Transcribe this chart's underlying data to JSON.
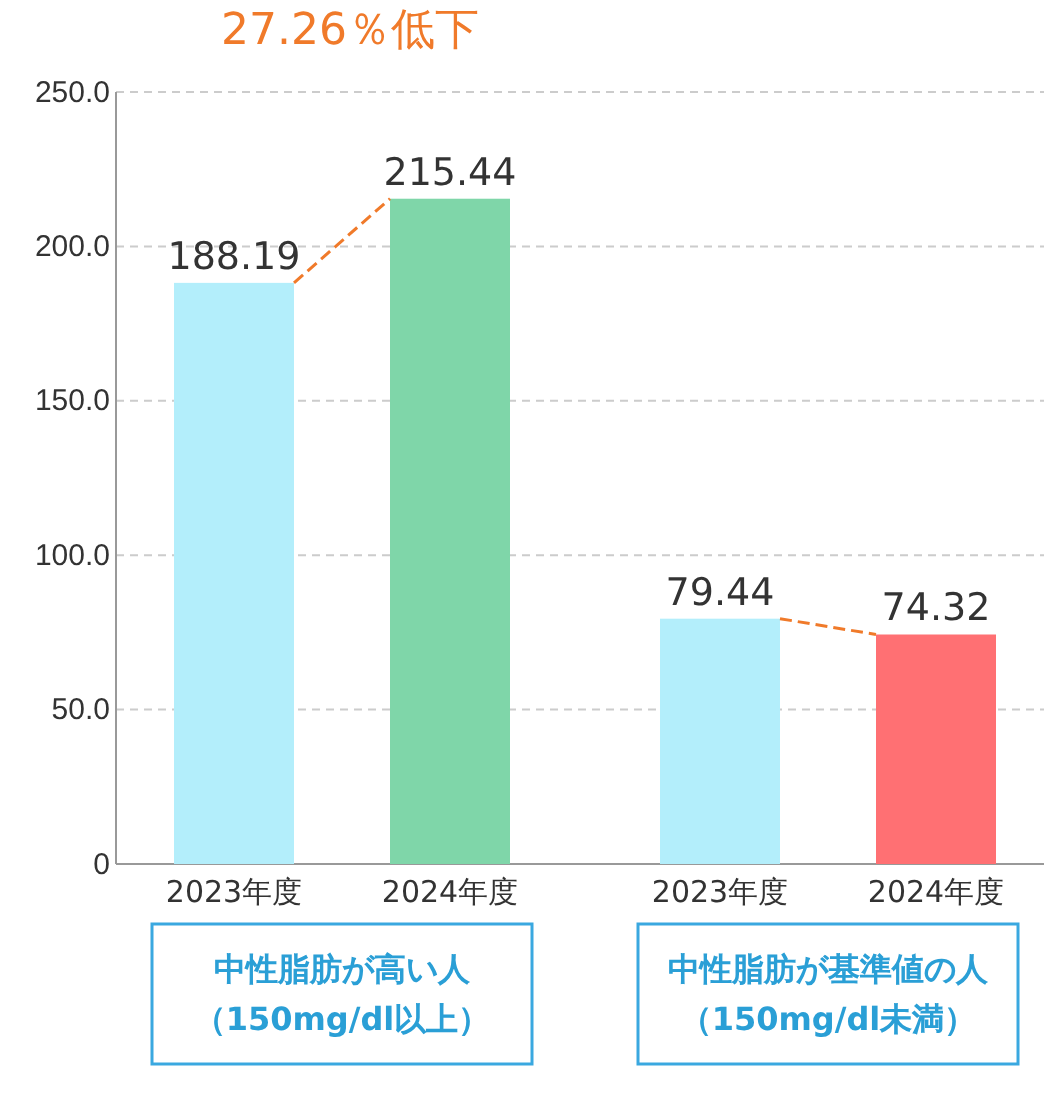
{
  "chart_data": {
    "type": "bar",
    "title": "27.26％低下",
    "categories": [
      "2023年度",
      "2024年度",
      "2023年度",
      "2024年度"
    ],
    "values": [
      188.19,
      215.44,
      79.44,
      74.32
    ],
    "colors": [
      "#b3eefb",
      "#7fd6a9",
      "#b3eefb",
      "#ff7073"
    ],
    "ylim": [
      0,
      250
    ],
    "yticks": [
      {
        "value": 0,
        "label": "0"
      },
      {
        "value": 50,
        "label": "50.0"
      },
      {
        "value": 100,
        "label": "100.0"
      },
      {
        "value": 150,
        "label": "150.0"
      },
      {
        "value": 200,
        "label": "200.0"
      },
      {
        "value": 250,
        "label": "250.0"
      }
    ],
    "grid": "y",
    "data_labels": true,
    "annotations": [
      "中性脂肪が高い人",
      "（150mg/dl以上）",
      "中性脂肪が基準値の人",
      "（150mg/dl未満）"
    ]
  }
}
